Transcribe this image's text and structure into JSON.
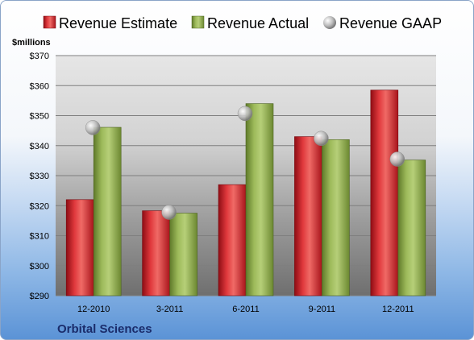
{
  "chart_data": {
    "type": "bar",
    "title": "",
    "company": "Orbital Sciences",
    "ylabel": "$millions",
    "xlabel": "",
    "ylim": [
      290,
      370
    ],
    "yticks": [
      290,
      300,
      310,
      320,
      330,
      340,
      350,
      360,
      370
    ],
    "ytick_labels": [
      "$290",
      "$300",
      "$310",
      "$320",
      "$330",
      "$340",
      "$350",
      "$360",
      "$370"
    ],
    "categories": [
      "12-2010",
      "3-2011",
      "6-2011",
      "9-2011",
      "12-2011"
    ],
    "grid": true,
    "legend_position": "top",
    "series": [
      {
        "name": "Revenue Estimate",
        "kind": "bar",
        "color": "#d0202a",
        "values": [
          322,
          318.3,
          327,
          343,
          358.5
        ]
      },
      {
        "name": "Revenue Actual",
        "kind": "bar",
        "color": "#8aa64a",
        "values": [
          346.1,
          317.5,
          354,
          342,
          335.2
        ]
      },
      {
        "name": "Revenue GAAP",
        "kind": "marker",
        "color": "#c0c0c0",
        "values": [
          346,
          317.8,
          350.7,
          342.4,
          335.5
        ]
      }
    ]
  }
}
